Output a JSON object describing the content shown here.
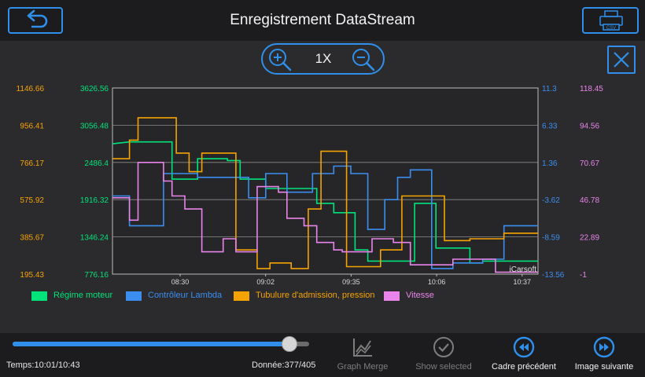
{
  "header": {
    "title": "Enregistrement DataStream",
    "back_icon": "back-arrow-icon",
    "export_icon": "printer-csv-icon",
    "export_label": "CSV"
  },
  "zoom": {
    "label": "1X"
  },
  "colors": {
    "accent": "#2f8fea",
    "green": "#00e37a",
    "blue": "#3b8ef0",
    "orange": "#f5a300",
    "violet": "#e884ea"
  },
  "chart_data": {
    "type": "line",
    "watermark": "iCarsoft",
    "x_labels": [
      "08:30",
      "09:02",
      "09:35",
      "10:06",
      "10:37"
    ],
    "series": [
      {
        "name": "Régime moteur",
        "color": "#00e37a",
        "axis": "left-inner",
        "ylim": [
          776.16,
          3626.56
        ],
        "ticks": [
          "776.16",
          "1346.24",
          "1916.32",
          "2486.4",
          "3056.48",
          "3626.56"
        ],
        "points": [
          [
            0,
            0.7
          ],
          [
            0.04,
            0.71
          ],
          [
            0.11,
            0.71
          ],
          [
            0.14,
            0.71
          ],
          [
            0.14,
            0.51
          ],
          [
            0.2,
            0.51
          ],
          [
            0.2,
            0.62
          ],
          [
            0.27,
            0.62
          ],
          [
            0.27,
            0.61
          ],
          [
            0.3,
            0.61
          ],
          [
            0.3,
            0.51
          ],
          [
            0.36,
            0.51
          ],
          [
            0.36,
            0.46
          ],
          [
            0.48,
            0.46
          ],
          [
            0.48,
            0.38
          ],
          [
            0.52,
            0.38
          ],
          [
            0.52,
            0.33
          ],
          [
            0.53,
            0.33
          ],
          [
            0.55,
            0.33
          ],
          [
            0.57,
            0.33
          ],
          [
            0.57,
            0.13
          ],
          [
            0.6,
            0.13
          ],
          [
            0.6,
            0.07
          ],
          [
            0.63,
            0.07
          ],
          [
            0.71,
            0.07
          ],
          [
            0.71,
            0.38
          ],
          [
            0.76,
            0.38
          ],
          [
            0.76,
            0.14
          ],
          [
            0.84,
            0.14
          ],
          [
            0.84,
            0.06
          ],
          [
            0.87,
            0.06
          ],
          [
            0.87,
            0.07
          ],
          [
            0.96,
            0.07
          ],
          [
            1,
            0.07
          ]
        ]
      },
      {
        "name": "Contrôleur Lambda",
        "color": "#3b8ef0",
        "axis": "right-inner",
        "ylim": [
          -13.56,
          11.3
        ],
        "ticks": [
          "-13.56",
          "-8.59",
          "-3.62",
          "1.36",
          "6.33",
          "11.3"
        ],
        "points": [
          [
            0,
            0.42
          ],
          [
            0.04,
            0.42
          ],
          [
            0.04,
            0.26
          ],
          [
            0.12,
            0.26
          ],
          [
            0.12,
            0.54
          ],
          [
            0.17,
            0.54
          ],
          [
            0.17,
            0.54
          ],
          [
            0.2,
            0.54
          ],
          [
            0.2,
            0.52
          ],
          [
            0.32,
            0.52
          ],
          [
            0.32,
            0.41
          ],
          [
            0.36,
            0.41
          ],
          [
            0.36,
            0.54
          ],
          [
            0.39,
            0.54
          ],
          [
            0.39,
            0.54
          ],
          [
            0.41,
            0.54
          ],
          [
            0.41,
            0.44
          ],
          [
            0.47,
            0.44
          ],
          [
            0.47,
            0.54
          ],
          [
            0.52,
            0.54
          ],
          [
            0.52,
            0.58
          ],
          [
            0.56,
            0.58
          ],
          [
            0.56,
            0.54
          ],
          [
            0.6,
            0.54
          ],
          [
            0.6,
            0.24
          ],
          [
            0.64,
            0.24
          ],
          [
            0.64,
            0.4
          ],
          [
            0.67,
            0.4
          ],
          [
            0.67,
            0.52
          ],
          [
            0.7,
            0.52
          ],
          [
            0.7,
            0.56
          ],
          [
            0.75,
            0.56
          ],
          [
            0.75,
            0.03
          ],
          [
            0.8,
            0.03
          ],
          [
            0.8,
            0.06
          ],
          [
            0.87,
            0.06
          ],
          [
            0.87,
            0.08
          ],
          [
            0.92,
            0.08
          ],
          [
            0.92,
            0.26
          ],
          [
            0.96,
            0.26
          ],
          [
            0.96,
            0.26
          ],
          [
            1,
            0.26
          ]
        ]
      },
      {
        "name": "Tubulure d'admission, pression",
        "color": "#f5a300",
        "axis": "left-outer",
        "ylim": [
          195.43,
          1146.66
        ],
        "ticks": [
          "195.43",
          "385.67",
          "575.92",
          "766.17",
          "956.41",
          "1146.66"
        ],
        "points": [
          [
            0,
            0.62
          ],
          [
            0.04,
            0.62
          ],
          [
            0.04,
            0.72
          ],
          [
            0.06,
            0.72
          ],
          [
            0.06,
            0.84
          ],
          [
            0.11,
            0.84
          ],
          [
            0.15,
            0.84
          ],
          [
            0.15,
            0.65
          ],
          [
            0.18,
            0.65
          ],
          [
            0.18,
            0.55
          ],
          [
            0.21,
            0.55
          ],
          [
            0.21,
            0.65
          ],
          [
            0.29,
            0.65
          ],
          [
            0.29,
            0.13
          ],
          [
            0.34,
            0.13
          ],
          [
            0.34,
            0.03
          ],
          [
            0.37,
            0.03
          ],
          [
            0.37,
            0.06
          ],
          [
            0.42,
            0.06
          ],
          [
            0.42,
            0.03
          ],
          [
            0.46,
            0.03
          ],
          [
            0.46,
            0.35
          ],
          [
            0.49,
            0.35
          ],
          [
            0.49,
            0.66
          ],
          [
            0.55,
            0.66
          ],
          [
            0.55,
            0.04
          ],
          [
            0.63,
            0.04
          ],
          [
            0.63,
            0.13
          ],
          [
            0.68,
            0.13
          ],
          [
            0.68,
            0.42
          ],
          [
            0.78,
            0.42
          ],
          [
            0.78,
            0.18
          ],
          [
            0.84,
            0.18
          ],
          [
            0.84,
            0.19
          ],
          [
            0.92,
            0.19
          ],
          [
            0.92,
            0.22
          ],
          [
            1,
            0.22
          ]
        ]
      },
      {
        "name": "Vitesse",
        "color": "#e884ea",
        "axis": "right-outer",
        "ylim": [
          -1,
          118.45
        ],
        "ticks": [
          "-1",
          "22.89",
          "46.78",
          "70.67",
          "94.56",
          "118.45"
        ],
        "points": [
          [
            0,
            0.41
          ],
          [
            0.04,
            0.41
          ],
          [
            0.04,
            0.29
          ],
          [
            0.06,
            0.29
          ],
          [
            0.06,
            0.6
          ],
          [
            0.1,
            0.6
          ],
          [
            0.12,
            0.6
          ],
          [
            0.12,
            0.5
          ],
          [
            0.14,
            0.5
          ],
          [
            0.14,
            0.42
          ],
          [
            0.17,
            0.42
          ],
          [
            0.17,
            0.35
          ],
          [
            0.21,
            0.35
          ],
          [
            0.21,
            0.12
          ],
          [
            0.26,
            0.12
          ],
          [
            0.26,
            0.19
          ],
          [
            0.29,
            0.19
          ],
          [
            0.29,
            0.12
          ],
          [
            0.34,
            0.12
          ],
          [
            0.34,
            0.47
          ],
          [
            0.39,
            0.47
          ],
          [
            0.39,
            0.44
          ],
          [
            0.41,
            0.44
          ],
          [
            0.41,
            0.3
          ],
          [
            0.45,
            0.3
          ],
          [
            0.45,
            0.26
          ],
          [
            0.48,
            0.26
          ],
          [
            0.48,
            0.17
          ],
          [
            0.52,
            0.17
          ],
          [
            0.52,
            0.13
          ],
          [
            0.54,
            0.13
          ],
          [
            0.54,
            0.12
          ],
          [
            0.61,
            0.12
          ],
          [
            0.61,
            0.19
          ],
          [
            0.66,
            0.19
          ],
          [
            0.66,
            0.17
          ],
          [
            0.7,
            0.17
          ],
          [
            0.7,
            0.05
          ],
          [
            0.8,
            0.05
          ],
          [
            0.8,
            0.08
          ],
          [
            0.9,
            0.08
          ],
          [
            0.9,
            0.01
          ],
          [
            1,
            0.01
          ]
        ]
      }
    ]
  },
  "slider": {
    "progress": 0.935
  },
  "footer": {
    "time": "Temps:10:01/10:43",
    "data_count": "Donnée:377/405",
    "actions": [
      {
        "label": "Graph Merge",
        "icon": "graph-merge-icon"
      },
      {
        "label": "Show selected",
        "icon": "checkmark-circle-icon"
      },
      {
        "label": "Cadre précédent",
        "icon": "rewind-icon"
      },
      {
        "label": "Image suivante",
        "icon": "fast-forward-icon"
      }
    ]
  }
}
